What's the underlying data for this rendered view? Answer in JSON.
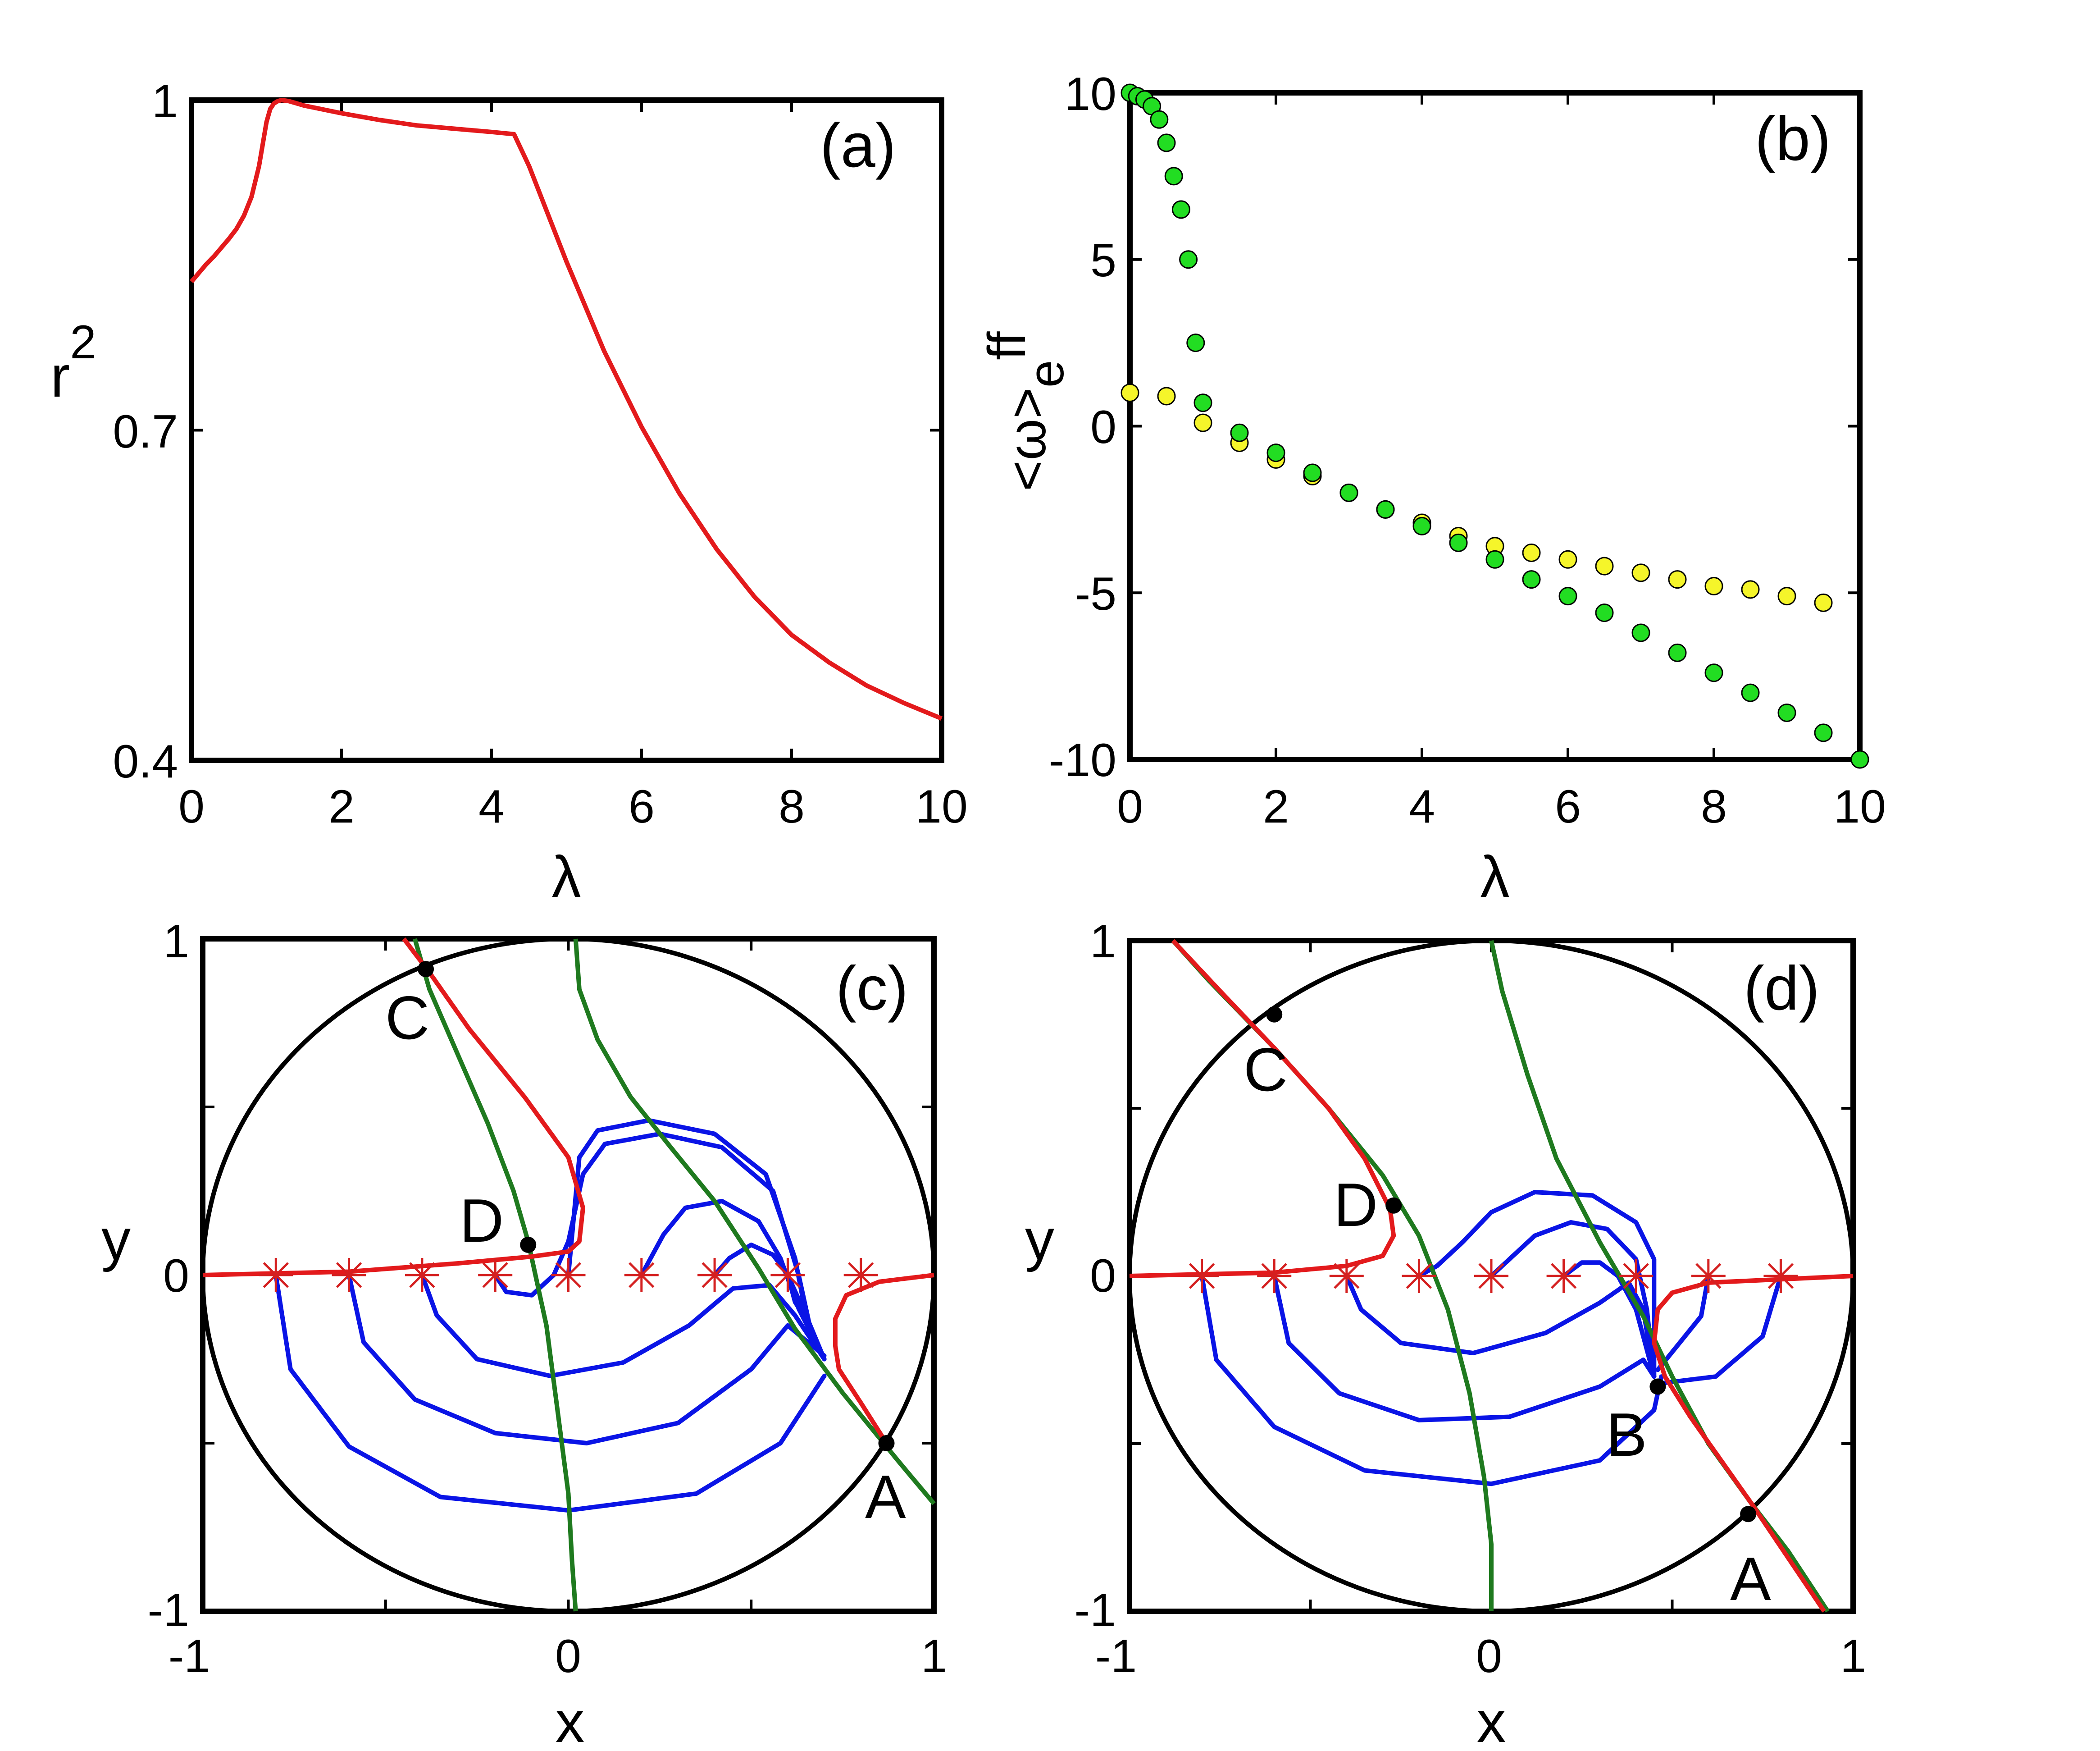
{
  "chart_data": [
    {
      "id": "a",
      "type": "line",
      "panel_label": "(a)",
      "xlabel": "λ",
      "ylabel": "r",
      "ylabel_sup": "2",
      "xlim": [
        0,
        10
      ],
      "ylim": [
        0.4,
        1
      ],
      "xticks": [
        "0",
        "2",
        "4",
        "6",
        "8",
        "10"
      ],
      "yticks": [
        "0.4",
        "0.7",
        "1"
      ],
      "series": [
        {
          "name": "r^2",
          "color": "#e31a1c",
          "x": [
            0.0,
            0.1,
            0.2,
            0.3,
            0.4,
            0.5,
            0.6,
            0.7,
            0.8,
            0.9,
            0.95,
            1.0,
            1.05,
            1.1,
            1.15,
            1.2,
            1.3,
            1.5,
            2.0,
            2.5,
            3.0,
            3.5,
            4.0,
            4.3,
            4.5,
            5.0,
            5.5,
            6.0,
            6.5,
            7.0,
            7.5,
            8.0,
            8.5,
            9.0,
            9.5,
            10.0
          ],
          "y": [
            0.835,
            0.843,
            0.851,
            0.858,
            0.866,
            0.874,
            0.883,
            0.895,
            0.912,
            0.94,
            0.96,
            0.98,
            0.992,
            0.997,
            0.999,
            1.0,
            0.999,
            0.995,
            0.988,
            0.982,
            0.977,
            0.974,
            0.971,
            0.969,
            0.94,
            0.853,
            0.772,
            0.703,
            0.643,
            0.592,
            0.549,
            0.514,
            0.489,
            0.468,
            0.452,
            0.438
          ]
        }
      ]
    },
    {
      "id": "b",
      "type": "scatter",
      "panel_label": "(b)",
      "xlabel": "λ",
      "ylabel": "<ω>",
      "ylabel_sub": "e",
      "ylabel_tail": "ff",
      "xlim": [
        0,
        10
      ],
      "ylim": [
        -10,
        10
      ],
      "xticks": [
        "0",
        "2",
        "4",
        "6",
        "8",
        "10"
      ],
      "yticks": [
        "-10",
        "-5",
        "0",
        "5",
        "10"
      ],
      "series": [
        {
          "name": "green",
          "color": "#22dd22",
          "x": [
            0.0,
            0.1,
            0.2,
            0.3,
            0.4,
            0.5,
            0.6,
            0.7,
            0.8,
            0.9,
            1.0,
            1.5,
            2.0,
            2.5,
            3.0,
            3.5,
            4.0,
            4.5,
            5.0,
            5.5,
            6.0,
            6.5,
            7.0,
            7.5,
            8.0,
            8.5,
            9.0,
            9.5,
            10.0
          ],
          "y": [
            10.0,
            9.9,
            9.8,
            9.6,
            9.2,
            8.5,
            7.5,
            6.5,
            5.0,
            2.5,
            0.7,
            -0.2,
            -0.8,
            -1.4,
            -2.0,
            -2.5,
            -3.0,
            -3.5,
            -4.0,
            -4.6,
            -5.1,
            -5.6,
            -6.2,
            -6.8,
            -7.4,
            -8.0,
            -8.6,
            -9.2,
            -10.0
          ]
        },
        {
          "name": "yellow",
          "color": "#f5f52a",
          "x": [
            0.0,
            0.5,
            1.0,
            1.5,
            2.0,
            2.5,
            3.0,
            3.5,
            4.0,
            4.5,
            5.0,
            5.5,
            6.0,
            6.5,
            7.0,
            7.5,
            8.0,
            8.5,
            9.0,
            9.5
          ],
          "y": [
            1.0,
            0.9,
            0.1,
            -0.5,
            -1.0,
            -1.5,
            -2.0,
            -2.5,
            -2.9,
            -3.3,
            -3.6,
            -3.8,
            -4.0,
            -4.2,
            -4.4,
            -4.6,
            -4.8,
            -4.9,
            -5.1,
            -5.3
          ]
        }
      ]
    },
    {
      "id": "c",
      "type": "line",
      "panel_label": "(c)",
      "xlabel": "x",
      "ylabel": "y",
      "xlim": [
        -1,
        1
      ],
      "ylim": [
        -1,
        1
      ],
      "xticks": [
        "-1",
        "0",
        "1"
      ],
      "yticks": [
        "-1",
        "0",
        "1"
      ],
      "point_labels": [
        "A",
        "C",
        "D"
      ],
      "colors": {
        "circle": "#000000",
        "nullcline_red": "#e31a1c",
        "nullcline_green": "#1f7a1f",
        "trajectory": "#0a14e6",
        "star": "#d42020",
        "point": "#000000"
      }
    },
    {
      "id": "d",
      "type": "line",
      "panel_label": "(d)",
      "xlabel": "x",
      "ylabel": "y",
      "xlim": [
        -1,
        1
      ],
      "ylim": [
        -1,
        1
      ],
      "xticks": [
        "-1",
        "0",
        "1"
      ],
      "yticks": [
        "-1",
        "0",
        "1"
      ],
      "point_labels": [
        "A",
        "B",
        "C",
        "D"
      ],
      "colors": {
        "circle": "#000000",
        "nullcline_red": "#e31a1c",
        "nullcline_green": "#1f7a1f",
        "trajectory": "#0a14e6",
        "star": "#d42020",
        "point": "#000000"
      }
    }
  ]
}
